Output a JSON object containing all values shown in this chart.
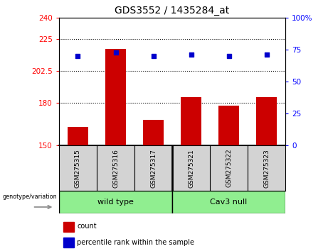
{
  "title": "GDS3552 / 1435284_at",
  "samples": [
    "GSM275315",
    "GSM275316",
    "GSM275317",
    "GSM275321",
    "GSM275322",
    "GSM275323"
  ],
  "red_values": [
    163,
    218,
    168,
    184,
    178,
    184
  ],
  "blue_values": [
    70,
    73,
    70,
    71,
    70,
    71
  ],
  "ylim_left": [
    150,
    240
  ],
  "ylim_right": [
    0,
    100
  ],
  "yticks_left": [
    150,
    180,
    202.5,
    225,
    240
  ],
  "ytick_labels_left": [
    "150",
    "180",
    "202.5",
    "225",
    "240"
  ],
  "yticks_right": [
    0,
    25,
    50,
    75,
    100
  ],
  "ytick_labels_right": [
    "0",
    "25",
    "50",
    "75",
    "100%"
  ],
  "hlines": [
    180,
    202.5,
    225
  ],
  "bar_color": "#cc0000",
  "dot_color": "#0000cc",
  "bar_width": 0.55,
  "gray_color": "#d3d3d3",
  "green_color": "#90EE90",
  "legend_items": [
    {
      "color": "#cc0000",
      "label": "count"
    },
    {
      "color": "#0000cc",
      "label": "percentile rank within the sample"
    }
  ],
  "group_label": "genotype/variation",
  "groups": [
    {
      "label": "wild type",
      "start": 0,
      "end": 3
    },
    {
      "label": "Cav3 null",
      "start": 3,
      "end": 6
    }
  ]
}
